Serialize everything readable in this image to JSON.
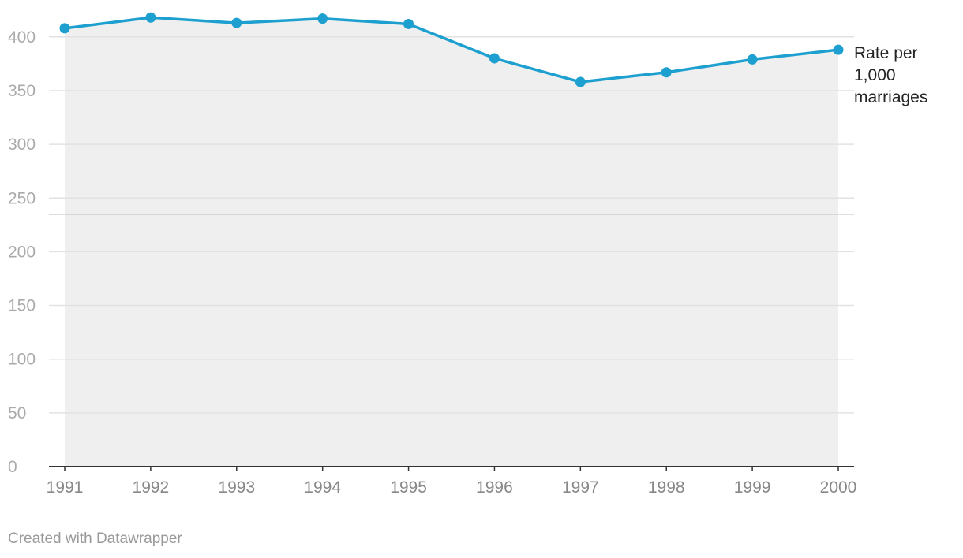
{
  "chart_data": {
    "type": "area",
    "categories": [
      "1991",
      "1992",
      "1993",
      "1994",
      "1995",
      "1996",
      "1997",
      "1998",
      "1999",
      "2000"
    ],
    "series": [
      {
        "name": "Rate per 1,000 marriages",
        "label_lines": [
          "Rate per",
          "1,000",
          "marriages"
        ],
        "values": [
          408,
          418,
          413,
          417,
          412,
          380,
          358,
          367,
          379,
          388
        ],
        "color": "#1d9fcf"
      }
    ],
    "ylim": [
      0,
      400
    ],
    "yticks": [
      "0",
      "50",
      "100",
      "150",
      "200",
      "250",
      "300",
      "350",
      "400"
    ],
    "reference_line": 235,
    "area_fill": "#efefef",
    "grid": true,
    "xlabel": "",
    "ylabel": ""
  },
  "footer": {
    "credit": "Created with Datawrapper"
  }
}
